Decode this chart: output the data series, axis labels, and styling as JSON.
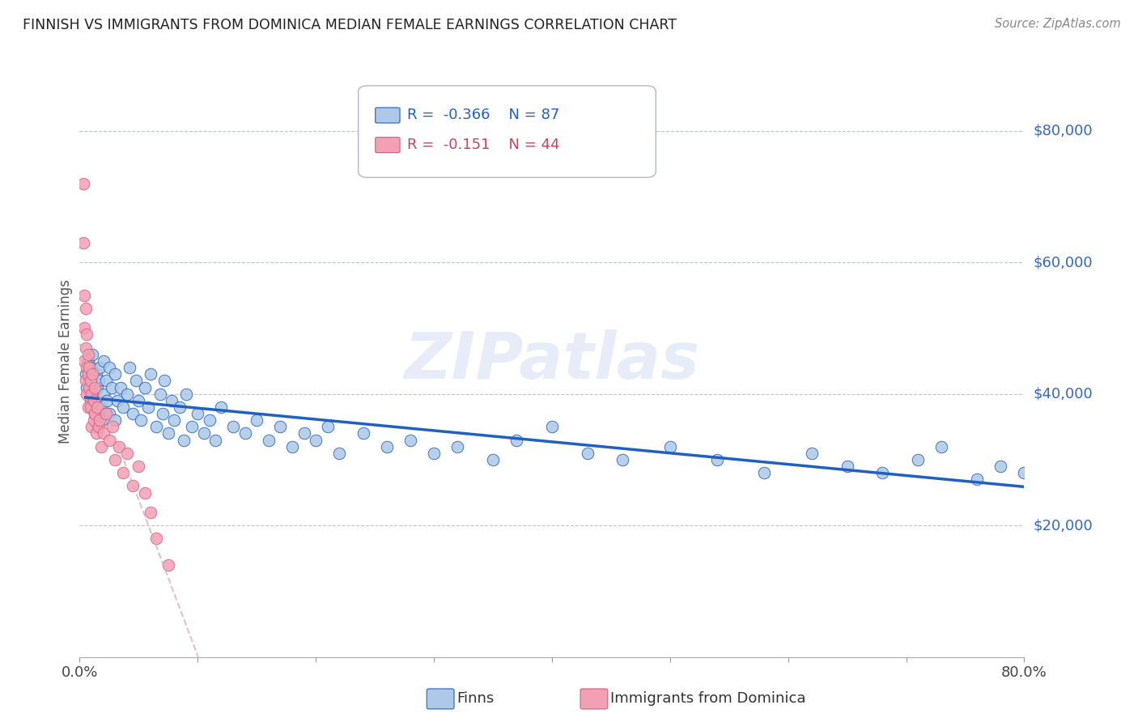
{
  "title": "FINNISH VS IMMIGRANTS FROM DOMINICA MEDIAN FEMALE EARNINGS CORRELATION CHART",
  "source": "Source: ZipAtlas.com",
  "ylabel": "Median Female Earnings",
  "xlim": [
    0.0,
    0.8
  ],
  "ylim": [
    0,
    90000
  ],
  "yticks": [
    0,
    20000,
    40000,
    60000,
    80000
  ],
  "xticks": [
    0.0,
    0.1,
    0.2,
    0.3,
    0.4,
    0.5,
    0.6,
    0.7,
    0.8
  ],
  "xtick_labels": [
    "0.0%",
    "",
    "",
    "",
    "",
    "",
    "",
    "",
    "80.0%"
  ],
  "legend1_label": "Finns",
  "legend2_label": "Immigrants from Dominica",
  "R_finns": -0.366,
  "N_finns": 87,
  "R_dom": -0.151,
  "N_dom": 44,
  "color_finns": "#adc8e8",
  "color_dom": "#f4a0b4",
  "color_line_finns": "#2060c0",
  "color_line_dom": "#d4a0b0",
  "watermark": "ZIPatlas",
  "finns_x": [
    0.005,
    0.006,
    0.007,
    0.008,
    0.009,
    0.01,
    0.01,
    0.011,
    0.012,
    0.013,
    0.014,
    0.015,
    0.015,
    0.016,
    0.017,
    0.018,
    0.019,
    0.02,
    0.02,
    0.021,
    0.022,
    0.023,
    0.025,
    0.025,
    0.027,
    0.03,
    0.03,
    0.032,
    0.035,
    0.037,
    0.04,
    0.042,
    0.045,
    0.048,
    0.05,
    0.052,
    0.055,
    0.058,
    0.06,
    0.065,
    0.068,
    0.07,
    0.072,
    0.075,
    0.078,
    0.08,
    0.085,
    0.088,
    0.09,
    0.095,
    0.1,
    0.105,
    0.11,
    0.115,
    0.12,
    0.13,
    0.14,
    0.15,
    0.16,
    0.17,
    0.18,
    0.19,
    0.2,
    0.21,
    0.22,
    0.24,
    0.26,
    0.28,
    0.3,
    0.32,
    0.35,
    0.37,
    0.4,
    0.43,
    0.46,
    0.5,
    0.54,
    0.58,
    0.62,
    0.65,
    0.68,
    0.71,
    0.73,
    0.76,
    0.78,
    0.8,
    0.81
  ],
  "finns_y": [
    43000,
    41000,
    45000,
    42000,
    39000,
    44000,
    38000,
    46000,
    40000,
    37000,
    43000,
    41000,
    35000,
    42000,
    44000,
    38000,
    36000,
    45000,
    40000,
    37000,
    42000,
    39000,
    44000,
    37000,
    41000,
    43000,
    36000,
    39000,
    41000,
    38000,
    40000,
    44000,
    37000,
    42000,
    39000,
    36000,
    41000,
    38000,
    43000,
    35000,
    40000,
    37000,
    42000,
    34000,
    39000,
    36000,
    38000,
    33000,
    40000,
    35000,
    37000,
    34000,
    36000,
    33000,
    38000,
    35000,
    34000,
    36000,
    33000,
    35000,
    32000,
    34000,
    33000,
    35000,
    31000,
    34000,
    32000,
    33000,
    31000,
    32000,
    30000,
    33000,
    35000,
    31000,
    30000,
    32000,
    30000,
    28000,
    31000,
    29000,
    28000,
    30000,
    32000,
    27000,
    29000,
    28000,
    26000
  ],
  "dom_x": [
    0.003,
    0.003,
    0.004,
    0.004,
    0.004,
    0.005,
    0.005,
    0.005,
    0.006,
    0.006,
    0.006,
    0.007,
    0.007,
    0.007,
    0.008,
    0.008,
    0.009,
    0.009,
    0.01,
    0.01,
    0.011,
    0.012,
    0.012,
    0.013,
    0.013,
    0.014,
    0.015,
    0.016,
    0.017,
    0.018,
    0.02,
    0.022,
    0.025,
    0.028,
    0.03,
    0.033,
    0.037,
    0.04,
    0.045,
    0.05,
    0.055,
    0.06,
    0.065,
    0.075
  ],
  "dom_y": [
    72000,
    63000,
    55000,
    50000,
    45000,
    53000,
    47000,
    42000,
    49000,
    44000,
    40000,
    46000,
    43000,
    38000,
    44000,
    41000,
    42000,
    38000,
    40000,
    35000,
    43000,
    39000,
    36000,
    41000,
    37000,
    34000,
    38000,
    35000,
    36000,
    32000,
    34000,
    37000,
    33000,
    35000,
    30000,
    32000,
    28000,
    31000,
    26000,
    29000,
    25000,
    22000,
    18000,
    14000
  ]
}
